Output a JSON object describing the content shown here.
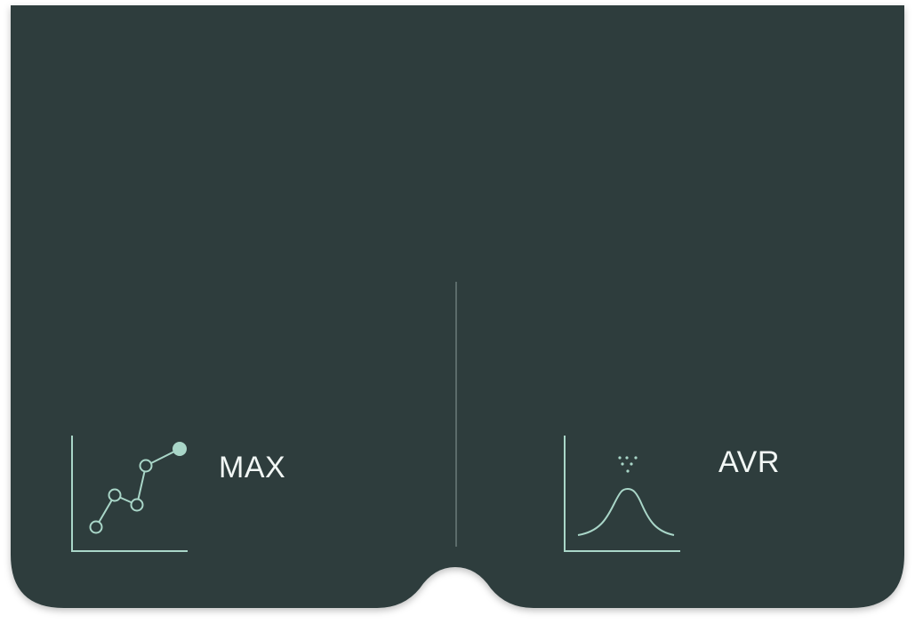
{
  "colors": {
    "panel": "#2d3d3d",
    "accent": "#a9d6c8",
    "text": "#f2f7f5",
    "divider": "#5b6b6a",
    "background": "#ffffff"
  },
  "modes": [
    {
      "id": "max",
      "label": "MAX",
      "icon": "line-chart-max-icon"
    },
    {
      "id": "avr",
      "label": "AVR",
      "icon": "bell-curve-average-icon"
    }
  ]
}
